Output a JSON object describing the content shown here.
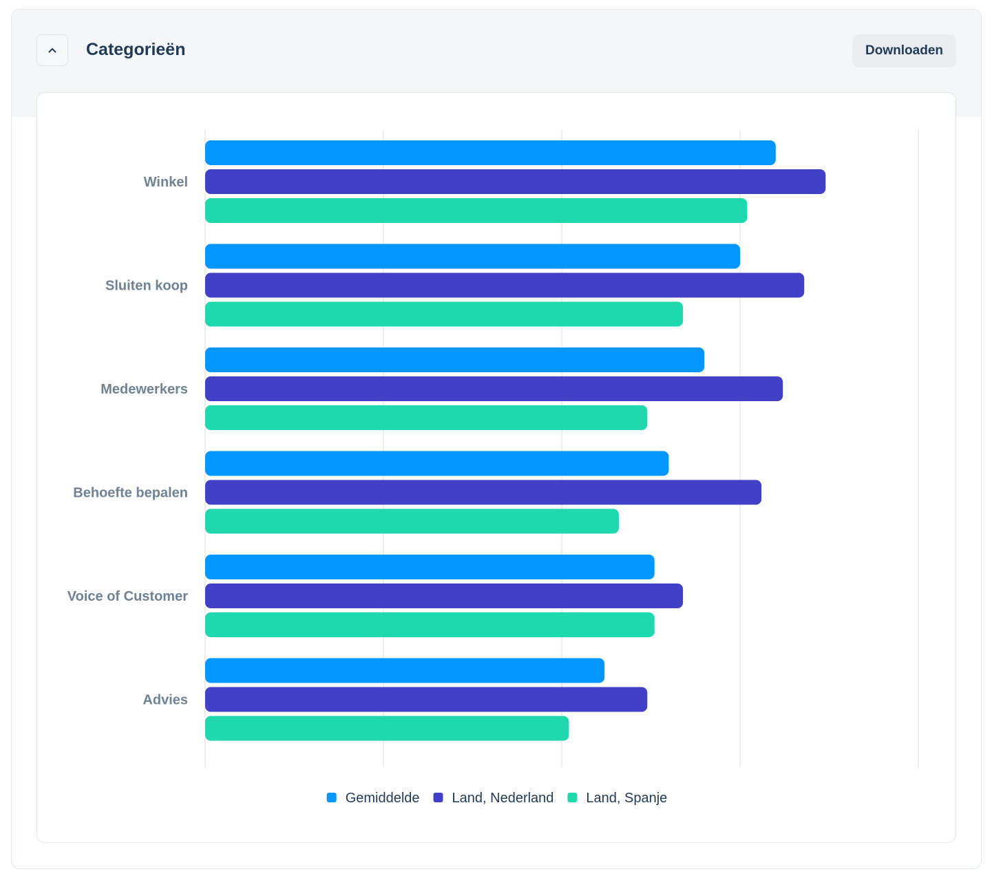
{
  "panel": {
    "title": "Categorieën",
    "download_label": "Downloaden",
    "collapse_icon": "chevron-up-icon"
  },
  "chart_data": {
    "type": "bar",
    "orientation": "horizontal",
    "categories": [
      "Winkel",
      "Sluiten koop",
      "Medewerkers",
      "Behoefte bepalen",
      "Voice of Customer",
      "Advies"
    ],
    "series": [
      {
        "name": "Gemiddelde",
        "color": "#0496ff",
        "values": [
          8.0,
          7.5,
          7.0,
          6.5,
          6.3,
          5.6
        ]
      },
      {
        "name": "Land, Nederland",
        "color": "#4340c8",
        "values": [
          8.7,
          8.4,
          8.1,
          7.8,
          6.7,
          6.2
        ]
      },
      {
        "name": "Land, Spanje",
        "color": "#1fd8ad",
        "values": [
          7.6,
          6.7,
          6.2,
          5.8,
          6.3,
          5.1
        ]
      }
    ],
    "xlim": [
      0,
      10
    ],
    "grid": true,
    "legend_position": "bottom"
  }
}
